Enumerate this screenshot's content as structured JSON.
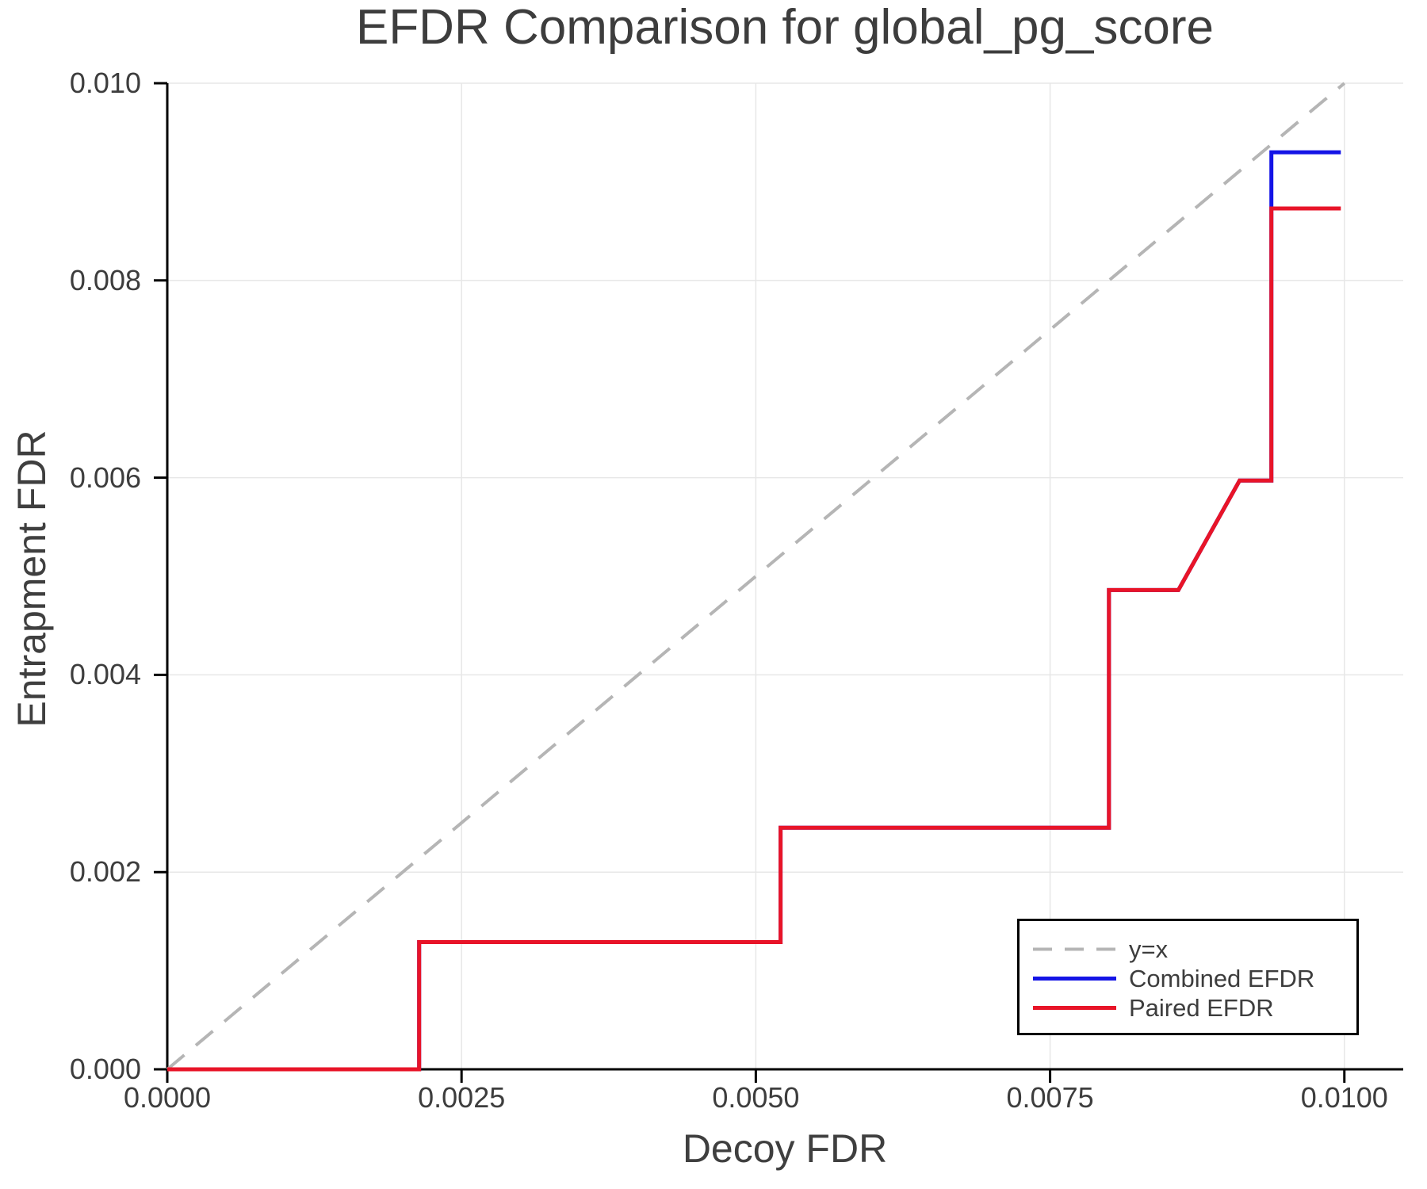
{
  "chart": {
    "title": "EFDR Comparison for global_pg_score",
    "x_axis_label": "Decoy FDR",
    "y_axis_label": "Entrapment FDR"
  },
  "chart_data": {
    "type": "line",
    "title": "EFDR Comparison for global_pg_score",
    "xlabel": "Decoy FDR",
    "ylabel": "Entrapment FDR",
    "xlim": [
      0,
      0.0105
    ],
    "ylim": [
      0,
      0.01
    ],
    "grid": true,
    "legend_position": "lower right",
    "x_ticks": [
      0,
      0.0025,
      0.005,
      0.0075,
      0.01
    ],
    "x_tick_labels": [
      "0.0000",
      "0.0025",
      "0.0050",
      "0.0075",
      "0.0100"
    ],
    "y_ticks": [
      0,
      0.002,
      0.004,
      0.006,
      0.008,
      0.01
    ],
    "y_tick_labels": [
      "0.000",
      "0.002",
      "0.004",
      "0.006",
      "0.008",
      "0.010"
    ],
    "colors": {
      "identity": "#b5b5b5",
      "combined": "#1414e6",
      "paired": "#e81428",
      "grid": "#e7e7e7",
      "spine": "#000000",
      "text": "#3d3d3d"
    },
    "series": [
      {
        "name": "y=x",
        "style": "dashed",
        "color": "#b5b5b5",
        "points": [
          [
            0,
            0
          ],
          [
            0.01,
            0.01
          ]
        ]
      },
      {
        "name": "Combined EFDR",
        "style": "solid",
        "color": "#1414e6",
        "points": [
          [
            0,
            0
          ],
          [
            0.00214,
            0
          ],
          [
            0.00214,
            0.00129
          ],
          [
            0.00521,
            0.00129
          ],
          [
            0.00521,
            0.00245
          ],
          [
            0.008,
            0.00245
          ],
          [
            0.008,
            0.00486
          ],
          [
            0.00859,
            0.00486
          ],
          [
            0.00911,
            0.00597
          ],
          [
            0.00938,
            0.00597
          ],
          [
            0.00938,
            0.0093
          ],
          [
            0.00997,
            0.0093
          ]
        ]
      },
      {
        "name": "Paired EFDR",
        "style": "solid",
        "color": "#e81428",
        "points": [
          [
            0,
            0
          ],
          [
            0.00214,
            0
          ],
          [
            0.00214,
            0.00129
          ],
          [
            0.00521,
            0.00129
          ],
          [
            0.00521,
            0.00245
          ],
          [
            0.008,
            0.00245
          ],
          [
            0.008,
            0.00486
          ],
          [
            0.00859,
            0.00486
          ],
          [
            0.00911,
            0.00597
          ],
          [
            0.00938,
            0.00597
          ],
          [
            0.00938,
            0.00873
          ],
          [
            0.00997,
            0.00873
          ]
        ]
      }
    ]
  }
}
